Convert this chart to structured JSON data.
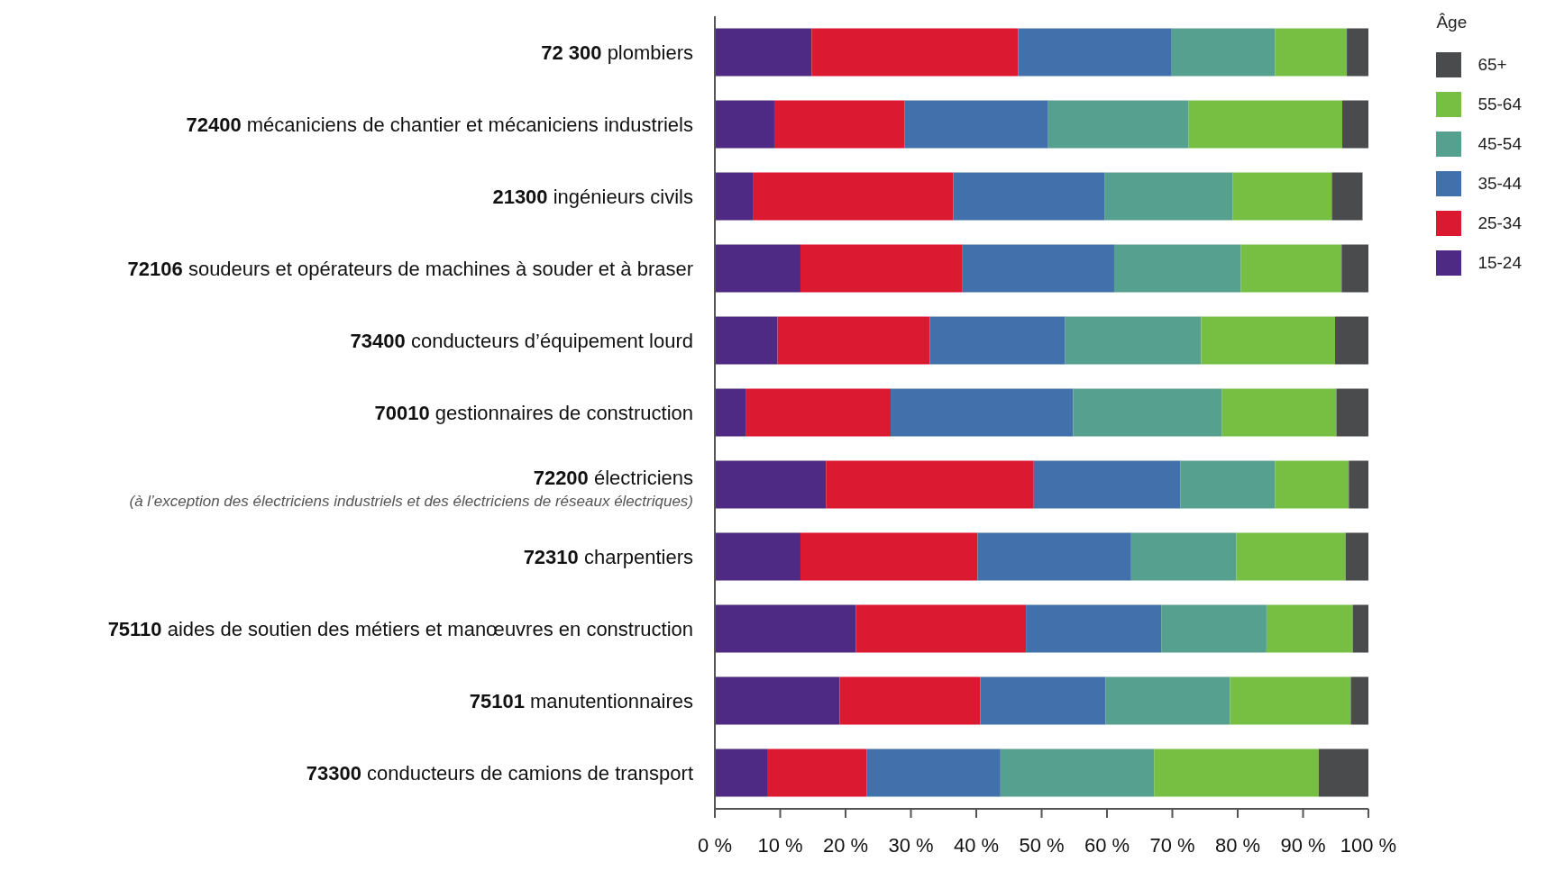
{
  "chart_data": {
    "type": "bar",
    "orientation": "horizontal",
    "stacked": true,
    "categories": [
      "72 300 plombiers",
      "72400 mécaniciens de chantier et mécaniciens industriels",
      "21300 ingénieurs civils",
      "72106 soudeurs et opérateurs de machines à souder et à braser",
      "73400 conducteurs d’équipement lourd",
      "70010 gestionnaires de construction",
      "72200  électriciens\n(à l’exception des électriciens industriels et des électriciens de réseaux électriques)",
      "72310 charpentiers",
      "75110 aides de soutien des métiers et manœuvres en construction",
      "75101 manutentionnaires",
      "73300 conducteurs de camions de transport"
    ],
    "series": [
      {
        "name": "15-24",
        "color": "#4e2a84",
        "values": [
          14.8,
          9.1,
          5.8,
          13.1,
          9.6,
          4.7,
          17.0,
          13.1,
          21.6,
          19.1,
          8.0
        ]
      },
      {
        "name": "25-34",
        "color": "#db1a32",
        "values": [
          31.6,
          19.9,
          30.7,
          24.8,
          23.3,
          22.2,
          31.8,
          27.1,
          26.0,
          21.5,
          15.2
        ]
      },
      {
        "name": "35-44",
        "color": "#4270ab",
        "values": [
          23.5,
          22.0,
          23.1,
          23.2,
          20.7,
          27.9,
          22.4,
          23.5,
          20.7,
          19.2,
          20.5
        ]
      },
      {
        "name": "45-54",
        "color": "#56a08f",
        "values": [
          15.8,
          21.5,
          19.6,
          19.4,
          20.8,
          22.8,
          14.5,
          16.1,
          16.1,
          19.0,
          23.5
        ]
      },
      {
        "name": "55-64",
        "color": "#77bf43",
        "values": [
          11.0,
          23.5,
          15.2,
          15.4,
          20.5,
          17.5,
          11.3,
          16.7,
          13.2,
          18.5,
          25.2
        ]
      },
      {
        "name": "65+",
        "color": "#4a4b4d",
        "values": [
          3.3,
          4.0,
          4.7,
          4.1,
          5.1,
          4.9,
          3.0,
          3.5,
          2.4,
          2.7,
          7.6
        ]
      }
    ],
    "xlim": [
      0,
      100
    ],
    "xticks": [
      {
        "value": 0,
        "label": "0 %"
      },
      {
        "value": 10,
        "label": "10 %"
      },
      {
        "value": 20,
        "label": "20 %"
      },
      {
        "value": 30,
        "label": "30 %"
      },
      {
        "value": 40,
        "label": "40 %"
      },
      {
        "value": 50,
        "label": "50 %"
      },
      {
        "value": 60,
        "label": "60 %"
      },
      {
        "value": 70,
        "label": "70 %"
      },
      {
        "value": 80,
        "label": "80 %"
      },
      {
        "value": 90,
        "label": "90 %"
      },
      {
        "value": 100,
        "label": "100 %"
      }
    ],
    "legend": "top right",
    "legend_title": "Âge",
    "grid": false
  }
}
